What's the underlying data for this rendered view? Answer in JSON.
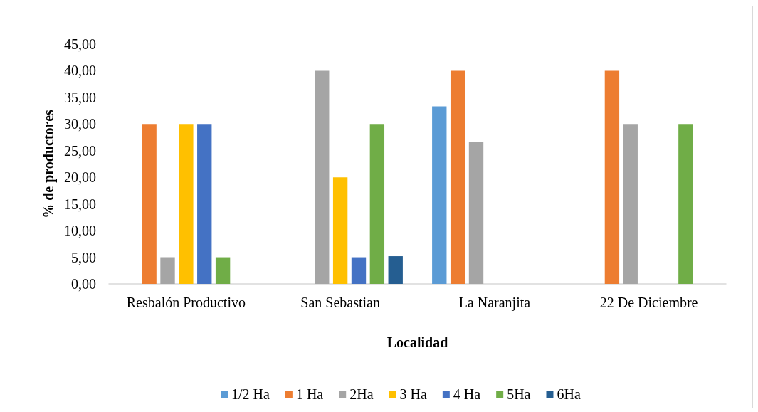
{
  "chart_data": {
    "type": "bar",
    "categories": [
      "Resbalón Productivo",
      "San Sebastian",
      "La Naranjita",
      "22 De Diciembre"
    ],
    "xlabel": "Localidad",
    "ylabel": "% de productores",
    "ylim": [
      0,
      45
    ],
    "yticks": [
      {
        "value": 0,
        "label": "0,00"
      },
      {
        "value": 5,
        "label": "5,00"
      },
      {
        "value": 10,
        "label": "10,00"
      },
      {
        "value": 15,
        "label": "15,00"
      },
      {
        "value": 20,
        "label": "20,00"
      },
      {
        "value": 25,
        "label": "25,00"
      },
      {
        "value": 30,
        "label": "30,00"
      },
      {
        "value": 35,
        "label": "35,00"
      },
      {
        "value": 40,
        "label": "40,00"
      },
      {
        "value": 45,
        "label": "45,00"
      }
    ],
    "legend": "bottom",
    "series": [
      {
        "name": "1/2 Ha",
        "color": "#5b9bd5",
        "values": [
          null,
          null,
          33.3,
          null
        ]
      },
      {
        "name": "1 Ha",
        "color": "#ed7d31",
        "values": [
          30,
          null,
          40,
          40
        ]
      },
      {
        "name": "2Ha",
        "color": "#a5a5a5",
        "values": [
          5,
          40,
          26.7,
          30
        ]
      },
      {
        "name": "3 Ha",
        "color": "#ffc000",
        "values": [
          30,
          20,
          null,
          null
        ]
      },
      {
        "name": "4 Ha",
        "color": "#4472c4",
        "values": [
          30,
          5,
          null,
          null
        ]
      },
      {
        "name": "5Ha",
        "color": "#70ad47",
        "values": [
          5,
          30,
          null,
          30
        ]
      },
      {
        "name": "6Ha",
        "color": "#255e91",
        "values": [
          null,
          5.2,
          null,
          null
        ]
      }
    ]
  }
}
